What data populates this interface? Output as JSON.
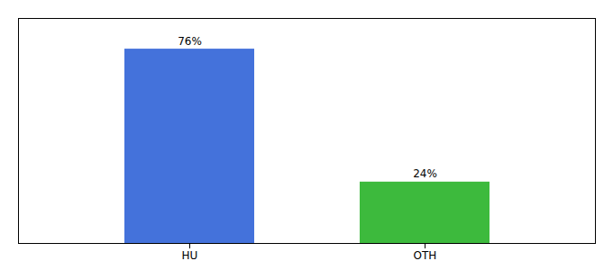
{
  "chart_data": {
    "type": "bar",
    "categories": [
      "HU",
      "OTH"
    ],
    "values": [
      76,
      24
    ],
    "colors": [
      "#4472db",
      "#3dba3d"
    ],
    "ylim": [
      0,
      88
    ],
    "data_labels": true,
    "value_labels": [
      "76%",
      "24%"
    ],
    "tick_labels": "x"
  }
}
